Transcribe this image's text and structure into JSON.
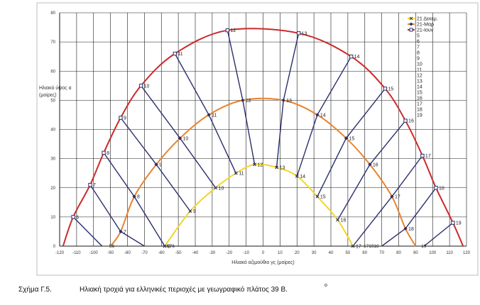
{
  "chart_data": {
    "type": "line",
    "title": "",
    "xlabel": "Ηλιακό αζιμούθιο γς (μοίρες)",
    "ylabel": "Ηλιακό ύψος α (μοίρες)",
    "xlim": [
      -120,
      120
    ],
    "ylim": [
      0,
      80
    ],
    "x_ticks": [
      -120,
      -110,
      -100,
      -90,
      -80,
      -70,
      -60,
      -50,
      -40,
      -30,
      -20,
      -10,
      0,
      10,
      20,
      30,
      40,
      50,
      60,
      70,
      80,
      90,
      100,
      110,
      120
    ],
    "y_ticks": [
      0,
      10,
      20,
      30,
      40,
      50,
      60,
      70,
      80
    ],
    "grid": true,
    "legend_position": "top-right",
    "series": [
      {
        "name": "21 Δεκεμ.",
        "color": "#f2d62a",
        "marker": "x",
        "points": [
          {
            "x": -58,
            "y": 0,
            "label": "8"
          },
          {
            "x": -43,
            "y": 12,
            "label": "9"
          },
          {
            "x": -28,
            "y": 20,
            "label": "10"
          },
          {
            "x": -16,
            "y": 25,
            "label": "11"
          },
          {
            "x": -5,
            "y": 28,
            "label": "12"
          },
          {
            "x": 8,
            "y": 27,
            "label": "13"
          },
          {
            "x": 20,
            "y": 24,
            "label": "14"
          },
          {
            "x": 32,
            "y": 17,
            "label": "15"
          },
          {
            "x": 44,
            "y": 9,
            "label": "16"
          },
          {
            "x": 53,
            "y": 0,
            "label": "17"
          }
        ]
      },
      {
        "name": "21-Μαρ",
        "color": "#e8832e",
        "marker": "diamond",
        "points": [
          {
            "x": -84,
            "y": 5,
            "label": "7"
          },
          {
            "x": -76,
            "y": 17,
            "label": "8"
          },
          {
            "x": -63,
            "y": 28,
            "label": "9"
          },
          {
            "x": -49,
            "y": 37,
            "label": "10"
          },
          {
            "x": -32,
            "y": 45,
            "label": "11"
          },
          {
            "x": -12,
            "y": 50,
            "label": "12"
          },
          {
            "x": 12,
            "y": 50,
            "label": "13"
          },
          {
            "x": 32,
            "y": 45,
            "label": "14"
          },
          {
            "x": 49,
            "y": 37,
            "label": "15"
          },
          {
            "x": 63,
            "y": 28,
            "label": "16"
          },
          {
            "x": 76,
            "y": 17,
            "label": "17"
          },
          {
            "x": 84,
            "y": 6,
            "label": "18"
          }
        ]
      },
      {
        "name": "21-Ιουν",
        "color": "#cc2a2a",
        "marker": "square",
        "points": [
          {
            "x": -112,
            "y": 10,
            "label": "6"
          },
          {
            "x": -102,
            "y": 21,
            "label": "7"
          },
          {
            "x": -94,
            "y": 32,
            "label": "8"
          },
          {
            "x": -84,
            "y": 44,
            "label": "9"
          },
          {
            "x": -72,
            "y": 55,
            "label": "10"
          },
          {
            "x": -52,
            "y": 66,
            "label": "11"
          },
          {
            "x": -21,
            "y": 74,
            "label": "12"
          },
          {
            "x": 21,
            "y": 73,
            "label": "13"
          },
          {
            "x": 52,
            "y": 65,
            "label": "14"
          },
          {
            "x": 72,
            "y": 54,
            "label": "15"
          },
          {
            "x": 84,
            "y": 43,
            "label": "16"
          },
          {
            "x": 94,
            "y": 31,
            "label": "17"
          },
          {
            "x": 102,
            "y": 20,
            "label": "18"
          },
          {
            "x": 112,
            "y": 8,
            "label": "19"
          }
        ]
      }
    ],
    "hour_lines": [
      {
        "label": "6",
        "points": [
          [
            -112,
            10
          ],
          [
            -95,
            0
          ]
        ]
      },
      {
        "label": "7",
        "points": [
          [
            -102,
            21
          ],
          [
            -84,
            5
          ],
          [
            -70,
            0
          ]
        ]
      },
      {
        "label": "8",
        "points": [
          [
            -94,
            32
          ],
          [
            -76,
            17
          ],
          [
            -58,
            0
          ]
        ]
      },
      {
        "label": "9",
        "points": [
          [
            -84,
            44
          ],
          [
            -63,
            28
          ],
          [
            -43,
            12
          ]
        ]
      },
      {
        "label": "10",
        "points": [
          [
            -72,
            55
          ],
          [
            -49,
            37
          ],
          [
            -28,
            20
          ]
        ]
      },
      {
        "label": "11",
        "points": [
          [
            -52,
            66
          ],
          [
            -32,
            45
          ],
          [
            -16,
            25
          ]
        ]
      },
      {
        "label": "12",
        "points": [
          [
            -21,
            74
          ],
          [
            -12,
            50
          ],
          [
            -5,
            28
          ]
        ]
      },
      {
        "label": "13",
        "points": [
          [
            21,
            73
          ],
          [
            12,
            50
          ],
          [
            8,
            27
          ]
        ]
      },
      {
        "label": "14",
        "points": [
          [
            52,
            65
          ],
          [
            32,
            45
          ],
          [
            20,
            24
          ]
        ]
      },
      {
        "label": "15",
        "points": [
          [
            72,
            54
          ],
          [
            49,
            37
          ],
          [
            32,
            17
          ]
        ]
      },
      {
        "label": "16",
        "points": [
          [
            84,
            43
          ],
          [
            63,
            28
          ],
          [
            44,
            9
          ]
        ]
      },
      {
        "label": "17",
        "points": [
          [
            94,
            31
          ],
          [
            76,
            17
          ],
          [
            53,
            0
          ]
        ]
      },
      {
        "label": "18",
        "points": [
          [
            102,
            20
          ],
          [
            84,
            6
          ],
          [
            70,
            0
          ]
        ]
      },
      {
        "label": "19",
        "points": [
          [
            112,
            8
          ],
          [
            95,
            0
          ]
        ]
      }
    ],
    "extra_labels": [
      {
        "x": -92,
        "y": 0,
        "text": "56"
      },
      {
        "x": -58,
        "y": 0,
        "text": "576"
      },
      {
        "x": 58,
        "y": 0,
        "text": "171918"
      },
      {
        "x": 92,
        "y": 0,
        "text": "19"
      }
    ],
    "legend_extra": [
      "5",
      "6",
      "7",
      "8",
      "9",
      "10",
      "11",
      "12",
      "13",
      "14",
      "15",
      "16",
      "17",
      "18",
      "19"
    ]
  },
  "caption": {
    "label": "Σχήμα Γ.5.",
    "text": "Ηλιακή τροχιά για ελληνικές περιοχές με γεωγραφικό πλάτος 39 Β.",
    "degree": "ο"
  }
}
